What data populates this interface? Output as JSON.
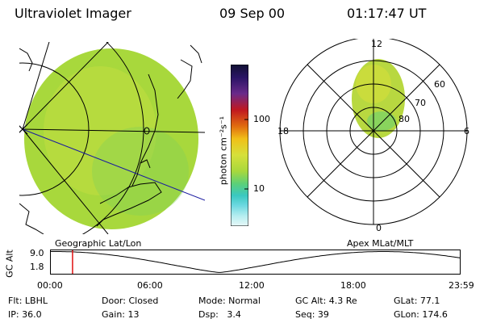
{
  "header": {
    "instrument": "Ultraviolet Imager",
    "date": "09 Sep 00",
    "time": "01:17:47 UT"
  },
  "colorbar": {
    "unit": "photon cm⁻²s⁻¹",
    "ticks": [
      "100",
      "10"
    ],
    "colors": [
      "#111133",
      "#2a1466",
      "#6a2a8a",
      "#c01820",
      "#e06a10",
      "#f0c018",
      "#d6e03a",
      "#a8d83c",
      "#5ad07a",
      "#3ac8c0",
      "#6ad8e0",
      "#b8eef0",
      "#e8f8f8"
    ]
  },
  "geo_panel": {
    "caption": "Geographic Lat/Lon",
    "image_color": "#a8d83c"
  },
  "polar_panel": {
    "caption": "Apex MLat/MLT",
    "mlt_labels": [
      "12",
      "18",
      "6",
      "0"
    ],
    "mlat_labels": [
      "60",
      "70",
      "80"
    ]
  },
  "timeline": {
    "y_label": "GC Alt",
    "y_ticks": [
      "9.0",
      "1.8"
    ],
    "x_ticks": [
      "00:00",
      "06:00",
      "12:00",
      "18:00",
      "23:59"
    ],
    "marker_time_hours": 1.296,
    "marker_color": "#e01010"
  },
  "info": {
    "row1": [
      "Flt: LBHL",
      "Door: Closed",
      "Mode: Normal",
      "GC Alt: 4.3 Re",
      "GLat: 77.1"
    ],
    "row2": [
      "IP: 36.0",
      "Gain: 13",
      "Dsp:   3.4",
      "Seq: 39",
      "GLon: 174.6"
    ]
  }
}
